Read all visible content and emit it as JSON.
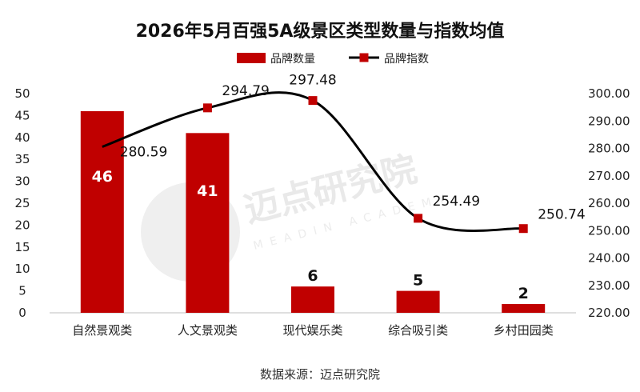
{
  "chart_data": {
    "type": "bar",
    "title": "2026年5月百强5A级景区类型数量与指数均值",
    "categories": [
      "自然景观类",
      "人文景观类",
      "现代娱乐类",
      "综合吸引类",
      "乡村田园类"
    ],
    "series": [
      {
        "name": "品牌数量",
        "type": "bar",
        "axis": "left",
        "values": [
          46,
          41,
          6,
          5,
          2
        ]
      },
      {
        "name": "品牌指数",
        "type": "line",
        "axis": "right",
        "values": [
          280.59,
          294.79,
          297.48,
          254.49,
          250.74
        ]
      }
    ],
    "y_left": {
      "lim": [
        0,
        50
      ],
      "ticks": [
        "0",
        "5",
        "10",
        "15",
        "20",
        "25",
        "30",
        "35",
        "40",
        "45",
        "50"
      ]
    },
    "y_right": {
      "lim": [
        220,
        300
      ],
      "ticks": [
        "220.00",
        "230.00",
        "240.00",
        "250.00",
        "260.00",
        "270.00",
        "280.00",
        "290.00",
        "300.00"
      ]
    },
    "line_labels": [
      "280.59",
      "294.79",
      "297.48",
      "254.49",
      "250.74"
    ],
    "legend_position": "top-center",
    "grid": false,
    "source": "数据来源：迈点研究院",
    "watermark": {
      "text": "迈点研究院",
      "subtext": "MEADIN ACADEMY"
    },
    "colors": {
      "bar": "#c00000",
      "line": "#000000",
      "marker": "#c00000"
    }
  }
}
